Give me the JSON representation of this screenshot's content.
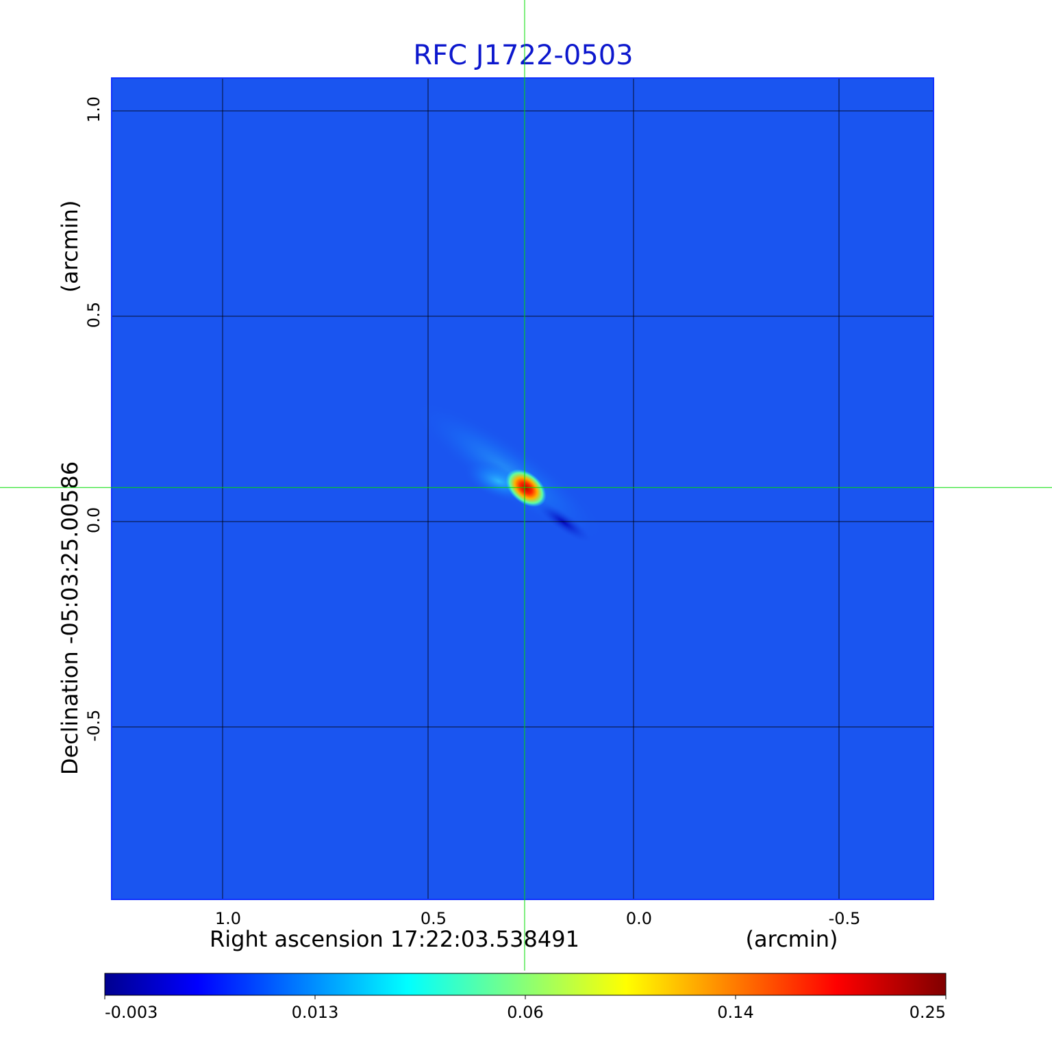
{
  "chart_data": {
    "type": "heatmap",
    "title": "RFC J1722-0503",
    "xlabel": "Right ascension  17:22:03.538491",
    "xunit": "(arcmin)",
    "ylabel": "Declination  -05:03:25.00586",
    "yunit": "(arcmin)",
    "xlim": [
      1.27,
      -0.73
    ],
    "ylim": [
      -0.92,
      1.08
    ],
    "x_ticks": [
      1.0,
      0.5,
      0.0,
      -0.5
    ],
    "x_tick_labels": [
      "1.0",
      "0.5",
      "0.0",
      "-0.5"
    ],
    "y_ticks": [
      1.0,
      0.5,
      0.0,
      -0.5
    ],
    "y_tick_labels": [
      "1.0",
      "0.5",
      "0.0",
      "-0.5"
    ],
    "grid": true,
    "crosshair": {
      "x": 0.265,
      "y": 0.083
    },
    "source": {
      "x": 0.27,
      "y": 0.09,
      "peak": 0.25
    },
    "colorbar": {
      "colormap": "jet",
      "tick_labels": [
        "-0.003",
        "0.013",
        "0.06",
        "0.14",
        "0.25"
      ],
      "colors": [
        "#00008f",
        "#0000ff",
        "#00ffff",
        "#ffff00",
        "#ff0000",
        "#800000"
      ]
    },
    "background_color": "#1a55f0",
    "title_color": "#0c17cd",
    "crosshair_color": "#00dd00"
  }
}
